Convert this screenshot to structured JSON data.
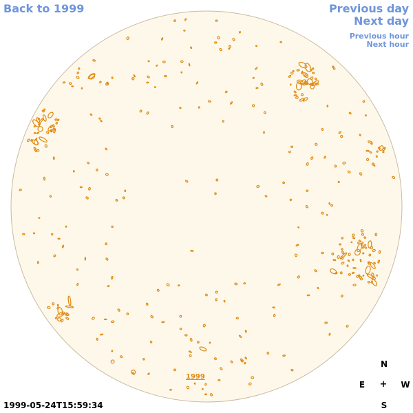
{
  "nav": {
    "back": "Back to 1999",
    "previous_day": "Previous day",
    "next_day": "Next day",
    "previous_hour": "Previous hour",
    "next_hour": "Next hour"
  },
  "year_link": "1999",
  "timestamp": "1999-05-24T15:59:34",
  "compass": {
    "north": "N",
    "east": "E",
    "center": "+",
    "west": "W",
    "south": "S"
  },
  "colors": {
    "disk_fill": "#fdf8ea",
    "disk_edge": "#c9bba2",
    "feature": "#e08a14",
    "link": "#6f95dc"
  }
}
